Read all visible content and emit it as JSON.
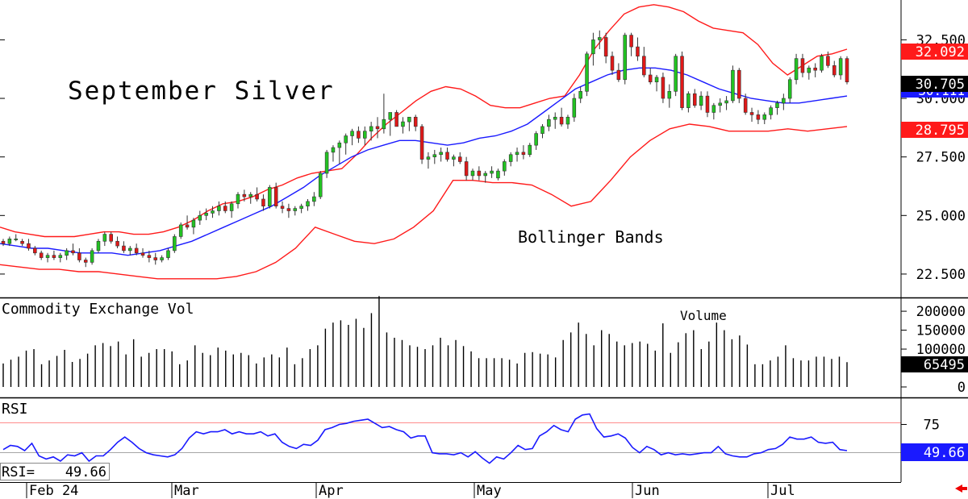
{
  "chart_data": [
    {
      "type": "candlestick",
      "title": "September Silver",
      "annotation": "Bollinger Bands",
      "y_ticks": [
        "32.500",
        "30.000",
        "27.500",
        "25.000",
        "22.500"
      ],
      "y_range": [
        21.5,
        34.2
      ],
      "last_value": "30.705",
      "upper_band_value": "32.092",
      "lower_band_value": "28.795",
      "middle_band_value": "30.111",
      "x_labels": [
        "Feb 24",
        "Mar",
        "Apr",
        "May",
        "Jun",
        "Jul"
      ],
      "ohlc": [
        [
          23.9,
          24.0,
          23.7,
          23.8
        ],
        [
          23.8,
          24.1,
          23.7,
          24.0
        ],
        [
          24.0,
          24.2,
          23.9,
          24.0
        ],
        [
          23.9,
          24.0,
          23.7,
          23.8
        ],
        [
          23.8,
          24.0,
          23.5,
          23.6
        ],
        [
          23.6,
          23.7,
          23.3,
          23.4
        ],
        [
          23.4,
          23.5,
          23.1,
          23.2
        ],
        [
          23.2,
          23.4,
          23.0,
          23.3
        ],
        [
          23.3,
          23.5,
          23.1,
          23.2
        ],
        [
          23.2,
          23.4,
          23.0,
          23.3
        ],
        [
          23.3,
          23.6,
          23.1,
          23.5
        ],
        [
          23.5,
          23.8,
          23.3,
          23.4
        ],
        [
          23.4,
          23.6,
          23.0,
          23.1
        ],
        [
          23.1,
          23.2,
          22.8,
          23.0
        ],
        [
          23.0,
          23.6,
          22.9,
          23.5
        ],
        [
          23.5,
          24.0,
          23.4,
          23.9
        ],
        [
          23.9,
          24.3,
          23.7,
          24.2
        ],
        [
          24.2,
          24.3,
          23.8,
          23.9
        ],
        [
          23.9,
          24.1,
          23.6,
          23.7
        ],
        [
          23.7,
          23.9,
          23.4,
          23.5
        ],
        [
          23.5,
          23.7,
          23.3,
          23.6
        ],
        [
          23.6,
          23.8,
          23.3,
          23.4
        ],
        [
          23.4,
          23.6,
          23.2,
          23.3
        ],
        [
          23.3,
          23.5,
          23.0,
          23.2
        ],
        [
          23.2,
          23.4,
          22.9,
          23.1
        ],
        [
          23.1,
          23.3,
          23.0,
          23.2
        ],
        [
          23.2,
          23.6,
          23.1,
          23.5
        ],
        [
          23.5,
          24.2,
          23.4,
          24.1
        ],
        [
          24.1,
          24.7,
          24.0,
          24.6
        ],
        [
          24.6,
          25.0,
          24.4,
          24.5
        ],
        [
          24.5,
          24.9,
          24.2,
          24.8
        ],
        [
          24.8,
          25.2,
          24.6,
          25.0
        ],
        [
          25.0,
          25.3,
          24.8,
          25.1
        ],
        [
          25.1,
          25.4,
          24.9,
          25.2
        ],
        [
          25.2,
          25.6,
          25.0,
          25.4
        ],
        [
          25.4,
          25.6,
          25.1,
          25.2
        ],
        [
          25.2,
          25.6,
          24.9,
          25.5
        ],
        [
          25.5,
          26.0,
          25.3,
          25.9
        ],
        [
          25.9,
          26.1,
          25.6,
          25.8
        ],
        [
          25.8,
          26.0,
          25.5,
          25.9
        ],
        [
          25.9,
          26.2,
          25.6,
          25.7
        ],
        [
          25.7,
          25.9,
          25.2,
          25.4
        ],
        [
          25.4,
          26.3,
          25.3,
          26.2
        ],
        [
          26.2,
          26.4,
          25.3,
          25.4
        ],
        [
          25.4,
          25.6,
          25.1,
          25.3
        ],
        [
          25.3,
          25.5,
          24.9,
          25.2
        ],
        [
          25.2,
          25.4,
          25.0,
          25.3
        ],
        [
          25.3,
          25.5,
          25.1,
          25.4
        ],
        [
          25.4,
          25.7,
          25.2,
          25.6
        ],
        [
          25.6,
          26.0,
          25.4,
          25.8
        ],
        [
          25.8,
          26.9,
          25.7,
          26.8
        ],
        [
          26.8,
          27.8,
          26.6,
          27.7
        ],
        [
          27.7,
          28.0,
          27.3,
          27.9
        ],
        [
          27.9,
          28.2,
          27.2,
          28.1
        ],
        [
          28.1,
          28.5,
          27.6,
          28.4
        ],
        [
          28.4,
          28.7,
          28.0,
          28.6
        ],
        [
          28.6,
          28.8,
          28.1,
          28.3
        ],
        [
          28.3,
          28.8,
          28.0,
          28.6
        ],
        [
          28.6,
          29.0,
          28.2,
          28.8
        ],
        [
          28.8,
          29.2,
          28.3,
          28.7
        ],
        [
          28.7,
          30.2,
          28.5,
          29.1
        ],
        [
          29.1,
          29.4,
          28.4,
          29.4
        ],
        [
          29.4,
          29.5,
          28.8,
          28.8
        ],
        [
          28.8,
          29.2,
          28.5,
          29.0
        ],
        [
          29.0,
          29.2,
          28.6,
          29.2
        ],
        [
          29.2,
          29.3,
          28.6,
          28.8
        ],
        [
          28.8,
          28.9,
          27.2,
          27.4
        ],
        [
          27.4,
          27.7,
          27.0,
          27.5
        ],
        [
          27.5,
          27.8,
          27.2,
          27.6
        ],
        [
          27.6,
          27.9,
          27.3,
          27.7
        ],
        [
          27.7,
          27.9,
          27.3,
          27.4
        ],
        [
          27.4,
          27.6,
          27.1,
          27.5
        ],
        [
          27.5,
          27.7,
          27.2,
          27.3
        ],
        [
          27.3,
          27.5,
          26.5,
          26.7
        ],
        [
          26.7,
          27.0,
          26.5,
          26.9
        ],
        [
          26.9,
          27.1,
          26.5,
          26.7
        ],
        [
          26.7,
          26.9,
          26.4,
          26.8
        ],
        [
          26.8,
          27.1,
          26.6,
          26.9
        ],
        [
          26.6,
          27.0,
          26.5,
          26.9
        ],
        [
          26.9,
          27.4,
          26.7,
          27.3
        ],
        [
          27.3,
          27.7,
          27.1,
          27.6
        ],
        [
          27.6,
          27.9,
          27.3,
          27.7
        ],
        [
          27.7,
          28.0,
          27.4,
          27.6
        ],
        [
          27.6,
          28.1,
          27.5,
          28.0
        ],
        [
          28.0,
          28.6,
          27.8,
          28.5
        ],
        [
          28.5,
          28.9,
          28.3,
          28.8
        ],
        [
          28.8,
          29.3,
          28.6,
          29.1
        ],
        [
          29.1,
          29.4,
          28.7,
          29.2
        ],
        [
          29.2,
          29.6,
          28.8,
          28.9
        ],
        [
          28.9,
          29.3,
          28.7,
          29.2
        ],
        [
          29.2,
          30.2,
          29.0,
          30.0
        ],
        [
          30.0,
          30.5,
          29.8,
          30.3
        ],
        [
          30.3,
          32.0,
          30.1,
          31.9
        ],
        [
          31.9,
          32.8,
          31.4,
          32.5
        ],
        [
          32.5,
          32.9,
          32.1,
          32.6
        ],
        [
          32.6,
          32.8,
          31.5,
          31.8
        ],
        [
          31.8,
          32.0,
          31.0,
          31.2
        ],
        [
          31.2,
          31.5,
          30.7,
          30.8
        ],
        [
          30.8,
          32.8,
          30.6,
          32.7
        ],
        [
          32.7,
          32.8,
          31.8,
          32.2
        ],
        [
          32.2,
          32.6,
          31.6,
          31.8
        ],
        [
          31.8,
          32.2,
          30.9,
          31.0
        ],
        [
          31.0,
          31.3,
          30.6,
          30.7
        ],
        [
          30.7,
          31.0,
          30.3,
          30.9
        ],
        [
          30.9,
          31.1,
          29.8,
          30.0
        ],
        [
          30.0,
          30.6,
          29.6,
          30.3
        ],
        [
          30.3,
          31.9,
          30.1,
          31.8
        ],
        [
          31.8,
          32.0,
          29.5,
          29.6
        ],
        [
          29.6,
          30.3,
          29.4,
          30.2
        ],
        [
          30.2,
          30.4,
          29.6,
          29.7
        ],
        [
          29.7,
          30.3,
          29.5,
          30.1
        ],
        [
          30.1,
          30.3,
          29.2,
          29.4
        ],
        [
          29.4,
          29.8,
          29.1,
          29.7
        ],
        [
          29.7,
          30.0,
          29.4,
          29.8
        ],
        [
          29.8,
          30.1,
          29.5,
          29.9
        ],
        [
          29.9,
          31.4,
          29.8,
          31.2
        ],
        [
          31.2,
          31.3,
          29.8,
          30.0
        ],
        [
          30.0,
          30.2,
          29.3,
          29.4
        ],
        [
          29.4,
          29.6,
          29.0,
          29.3
        ],
        [
          29.3,
          29.5,
          28.9,
          29.1
        ],
        [
          29.1,
          29.4,
          28.9,
          29.3
        ],
        [
          29.3,
          29.7,
          29.1,
          29.6
        ],
        [
          29.6,
          29.9,
          29.3,
          29.8
        ],
        [
          29.8,
          30.2,
          29.5,
          30.0
        ],
        [
          30.0,
          30.9,
          29.8,
          30.8
        ],
        [
          30.8,
          31.9,
          30.6,
          31.7
        ],
        [
          31.7,
          31.9,
          30.9,
          31.1
        ],
        [
          31.1,
          31.4,
          30.8,
          31.3
        ],
        [
          31.3,
          31.5,
          30.9,
          31.2
        ],
        [
          31.2,
          31.9,
          31.1,
          31.8
        ],
        [
          31.8,
          32.0,
          31.3,
          31.4
        ],
        [
          31.4,
          31.6,
          30.9,
          31.0
        ],
        [
          31.0,
          31.8,
          30.8,
          31.7
        ],
        [
          31.7,
          31.8,
          30.6,
          30.7
        ]
      ],
      "upper_band": [
        24.5,
        24.3,
        24.2,
        24.1,
        24.1,
        24.1,
        24.2,
        24.3,
        24.3,
        24.2,
        24.2,
        24.3,
        24.5,
        24.8,
        25.2,
        25.5,
        25.6,
        25.8,
        26.1,
        26.3,
        26.6,
        26.8,
        26.9,
        27.0,
        27.6,
        28.3,
        28.9,
        29.4,
        29.9,
        30.3,
        30.5,
        30.4,
        30.1,
        29.7,
        29.6,
        29.6,
        29.8,
        30.0,
        30.1,
        31.0,
        32.1,
        32.9,
        33.6,
        33.9,
        34.0,
        33.9,
        33.7,
        33.3,
        33.0,
        32.9,
        32.8,
        32.3,
        31.5,
        31.0,
        31.4,
        31.8,
        31.9,
        32.1
      ],
      "middle_band": [
        23.8,
        23.7,
        23.6,
        23.6,
        23.5,
        23.4,
        23.4,
        23.4,
        23.3,
        23.4,
        23.5,
        23.7,
        23.9,
        24.2,
        24.5,
        24.8,
        25.1,
        25.4,
        25.8,
        26.2,
        26.7,
        27.1,
        27.5,
        27.8,
        28.0,
        28.2,
        28.2,
        28.1,
        28.0,
        28.1,
        28.3,
        28.4,
        28.6,
        28.9,
        29.4,
        29.9,
        30.4,
        30.7,
        31.0,
        31.2,
        31.3,
        31.3,
        31.2,
        31.0,
        30.7,
        30.4,
        30.2,
        30.0,
        29.9,
        29.8,
        29.8,
        29.9,
        30.0,
        30.1
      ],
      "lower_band": [
        22.9,
        22.8,
        22.7,
        22.7,
        22.6,
        22.6,
        22.5,
        22.4,
        22.3,
        22.3,
        22.3,
        22.3,
        22.4,
        22.6,
        23.0,
        23.6,
        24.5,
        24.2,
        23.9,
        23.8,
        24.0,
        24.5,
        25.2,
        26.5,
        26.5,
        26.4,
        26.4,
        26.3,
        25.9,
        25.4,
        25.6,
        26.5,
        27.5,
        28.2,
        28.7,
        28.9,
        28.8,
        28.6,
        28.6,
        28.6,
        28.7,
        28.6,
        28.7,
        28.8
      ]
    },
    {
      "type": "bar",
      "title": "Commodity Exchange Vol",
      "annotation": "Volume",
      "y_ticks": [
        "200000",
        "150000",
        "100000",
        "0"
      ],
      "y_range": [
        0,
        230000
      ],
      "last_value": "65495",
      "values": [
        62000,
        72000,
        80000,
        96000,
        100000,
        60000,
        70000,
        82000,
        98000,
        66000,
        74000,
        88000,
        110000,
        116000,
        108000,
        120000,
        86000,
        126000,
        80000,
        90000,
        100000,
        100000,
        94000,
        60000,
        70000,
        110000,
        90000,
        84000,
        104000,
        96000,
        86000,
        90000,
        84000,
        62000,
        78000,
        86000,
        78000,
        104000,
        60000,
        76000,
        100000,
        110000,
        154000,
        170000,
        176000,
        164000,
        180000,
        156000,
        195000,
        240000,
        144000,
        130000,
        124000,
        110000,
        106000,
        100000,
        110000,
        130000,
        110000,
        124000,
        108000,
        94000,
        76000,
        76000,
        76000,
        76000,
        72000,
        62000,
        90000,
        92000,
        88000,
        86000,
        78000,
        124000,
        144000,
        170000,
        140000,
        110000,
        150000,
        140000,
        120000,
        110000,
        116000,
        120000,
        114000,
        96000,
        168000,
        90000,
        118000,
        142000,
        150000,
        100000,
        120000,
        170000,
        150000,
        126000,
        136000,
        112000,
        60000,
        60000,
        70000,
        80000,
        110000,
        76000,
        70000,
        70000,
        80000,
        80000,
        74000,
        80000,
        65495
      ]
    },
    {
      "type": "line",
      "title": "RSI",
      "y_ticks": [
        "75"
      ],
      "y_range": [
        20,
        100
      ],
      "last_value": "49.66",
      "readout_label": "RSI=",
      "readout_value": "49.66",
      "values": [
        51,
        55,
        54,
        50,
        57,
        45,
        42,
        44,
        40,
        46,
        45,
        48,
        40,
        45,
        45,
        51,
        58,
        63,
        58,
        52,
        48,
        46,
        45,
        44,
        46,
        52,
        62,
        68,
        66,
        68,
        68,
        70,
        66,
        68,
        66,
        66,
        68,
        64,
        66,
        58,
        54,
        52,
        56,
        55,
        60,
        70,
        72,
        75,
        76,
        78,
        79,
        80,
        76,
        72,
        73,
        70,
        68,
        62,
        64,
        64,
        48,
        47,
        47,
        46,
        48,
        44,
        49,
        43,
        38,
        44,
        42,
        48,
        55,
        51,
        52,
        64,
        68,
        74,
        70,
        68,
        80,
        84,
        85,
        71,
        63,
        64,
        66,
        62,
        53,
        48,
        54,
        51,
        46,
        48,
        46,
        47,
        46,
        47,
        48,
        48,
        54,
        47,
        45,
        44,
        44,
        47,
        48,
        51,
        52,
        56,
        63,
        61,
        61,
        63,
        58,
        57,
        58,
        51,
        50
      ]
    }
  ]
}
